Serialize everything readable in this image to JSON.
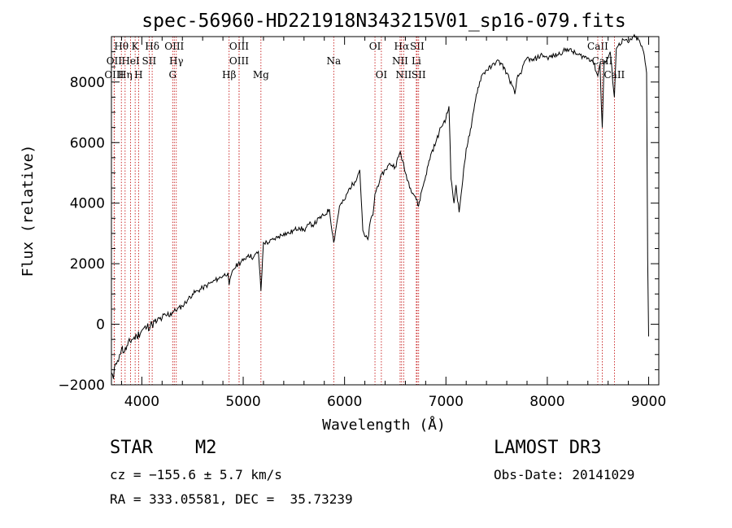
{
  "chart_data": {
    "type": "line",
    "title": "spec-56960-HD221918N343215V01_sp16-079.fits",
    "xlabel": "Wavelength (Å)",
    "ylabel": "Flux (relative)",
    "xlim": [
      3700,
      9100
    ],
    "ylim": [
      -2000,
      9500
    ],
    "xticks": [
      4000,
      5000,
      6000,
      7000,
      8000,
      9000
    ],
    "yticks": [
      -2000,
      0,
      2000,
      4000,
      6000,
      8000
    ],
    "series": [
      {
        "name": "spectrum",
        "x": [
          3700,
          3720,
          3740,
          3760,
          3780,
          3800,
          3830,
          3860,
          3900,
          3950,
          4000,
          4050,
          4100,
          4150,
          4200,
          4250,
          4300,
          4350,
          4400,
          4450,
          4500,
          4550,
          4600,
          4650,
          4700,
          4750,
          4800,
          4850,
          4861,
          4900,
          4950,
          5000,
          5050,
          5100,
          5150,
          5175,
          5200,
          5250,
          5300,
          5350,
          5400,
          5450,
          5500,
          5550,
          5600,
          5650,
          5700,
          5750,
          5800,
          5850,
          5893,
          5950,
          6000,
          6050,
          6100,
          6150,
          6180,
          6200,
          6230,
          6260,
          6280,
          6300,
          6350,
          6400,
          6450,
          6500,
          6550,
          6600,
          6650,
          6700,
          6730,
          6760,
          6800,
          6850,
          6900,
          6950,
          7000,
          7030,
          7050,
          7080,
          7100,
          7130,
          7150,
          7200,
          7250,
          7300,
          7350,
          7400,
          7450,
          7500,
          7550,
          7600,
          7650,
          7680,
          7700,
          7750,
          7800,
          7850,
          7900,
          7950,
          8000,
          8100,
          8200,
          8300,
          8400,
          8450,
          8498,
          8520,
          8542,
          8560,
          8600,
          8620,
          8662,
          8680,
          8700,
          8750,
          8800,
          8850,
          8900,
          8950,
          8980,
          8990,
          9000
        ],
        "y": [
          -1600,
          -1800,
          -1300,
          -1200,
          -1000,
          -800,
          -900,
          -700,
          -500,
          -400,
          -200,
          -100,
          0,
          100,
          200,
          300,
          400,
          500,
          600,
          800,
          1000,
          1100,
          1200,
          1300,
          1400,
          1500,
          1600,
          1700,
          1300,
          1800,
          2000,
          2100,
          2300,
          2200,
          2400,
          1100,
          2700,
          2700,
          2800,
          2900,
          3000,
          3000,
          3100,
          3200,
          3100,
          3300,
          3300,
          3500,
          3600,
          3800,
          2700,
          3900,
          4100,
          4500,
          4700,
          5100,
          3100,
          2900,
          2800,
          3500,
          3600,
          4300,
          4800,
          5100,
          5300,
          5200,
          5700,
          5000,
          4500,
          4200,
          3900,
          4400,
          4900,
          5600,
          6000,
          6500,
          6800,
          7200,
          4800,
          4000,
          4600,
          3700,
          4300,
          5800,
          6500,
          7600,
          8200,
          8400,
          8500,
          8700,
          8600,
          8300,
          7900,
          7600,
          8100,
          8400,
          8800,
          8700,
          8800,
          8900,
          8800,
          8900,
          9100,
          8900,
          8800,
          8700,
          8200,
          8600,
          6500,
          8600,
          8800,
          9000,
          7500,
          9100,
          9200,
          9400,
          9300,
          9500,
          9400,
          9000,
          8300,
          2200,
          -400
        ]
      }
    ],
    "lines": [
      {
        "label": "Hθ",
        "x": 3798,
        "row": 0
      },
      {
        "label": "K",
        "x": 3934,
        "row": 0
      },
      {
        "label": "Hδ",
        "x": 4102,
        "row": 0
      },
      {
        "label": "OIII",
        "x": 4320,
        "row": 0
      },
      {
        "label": "OIII",
        "x": 4959,
        "row": 0
      },
      {
        "label": "OI",
        "x": 6300,
        "row": 0
      },
      {
        "label": "Hα",
        "x": 6563,
        "row": 0
      },
      {
        "label": "SII",
        "x": 6716,
        "row": 0
      },
      {
        "label": "CaII",
        "x": 8498,
        "row": 0
      },
      {
        "label": "OII",
        "x": 3727,
        "row": 1
      },
      {
        "label": "HeI",
        "x": 3889,
        "row": 1
      },
      {
        "label": "SII",
        "x": 4072,
        "row": 1
      },
      {
        "label": "Hγ",
        "x": 4340,
        "row": 1
      },
      {
        "label": "OIII",
        "x": 4959,
        "row": 1
      },
      {
        "label": "Na",
        "x": 5893,
        "row": 1
      },
      {
        "label": "NII",
        "x": 6548,
        "row": 1
      },
      {
        "label": "Li",
        "x": 6708,
        "row": 1
      },
      {
        "label": "CaII",
        "x": 8542,
        "row": 1
      },
      {
        "label": "OIII",
        "x": 3727,
        "row": 2
      },
      {
        "label": "Hη",
        "x": 3835,
        "row": 2
      },
      {
        "label": "H",
        "x": 3968,
        "row": 2
      },
      {
        "label": "G",
        "x": 4304,
        "row": 2
      },
      {
        "label": "Hβ",
        "x": 4861,
        "row": 2
      },
      {
        "label": "Mg",
        "x": 5175,
        "row": 2
      },
      {
        "label": "OI",
        "x": 6363,
        "row": 2
      },
      {
        "label": "NII",
        "x": 6583,
        "row": 2
      },
      {
        "label": "SII",
        "x": 6731,
        "row": 2
      },
      {
        "label": "CaII",
        "x": 8662,
        "row": 2
      }
    ],
    "line_color": "#c00000"
  },
  "info": {
    "class": "STAR",
    "subclass": "M2",
    "survey": "LAMOST DR3",
    "cz": "cz = −155.6 ± 5.7 km/s",
    "obs_date": "Obs-Date: 20141029",
    "coords": "RA = 333.05581, DEC =  35.73239"
  }
}
